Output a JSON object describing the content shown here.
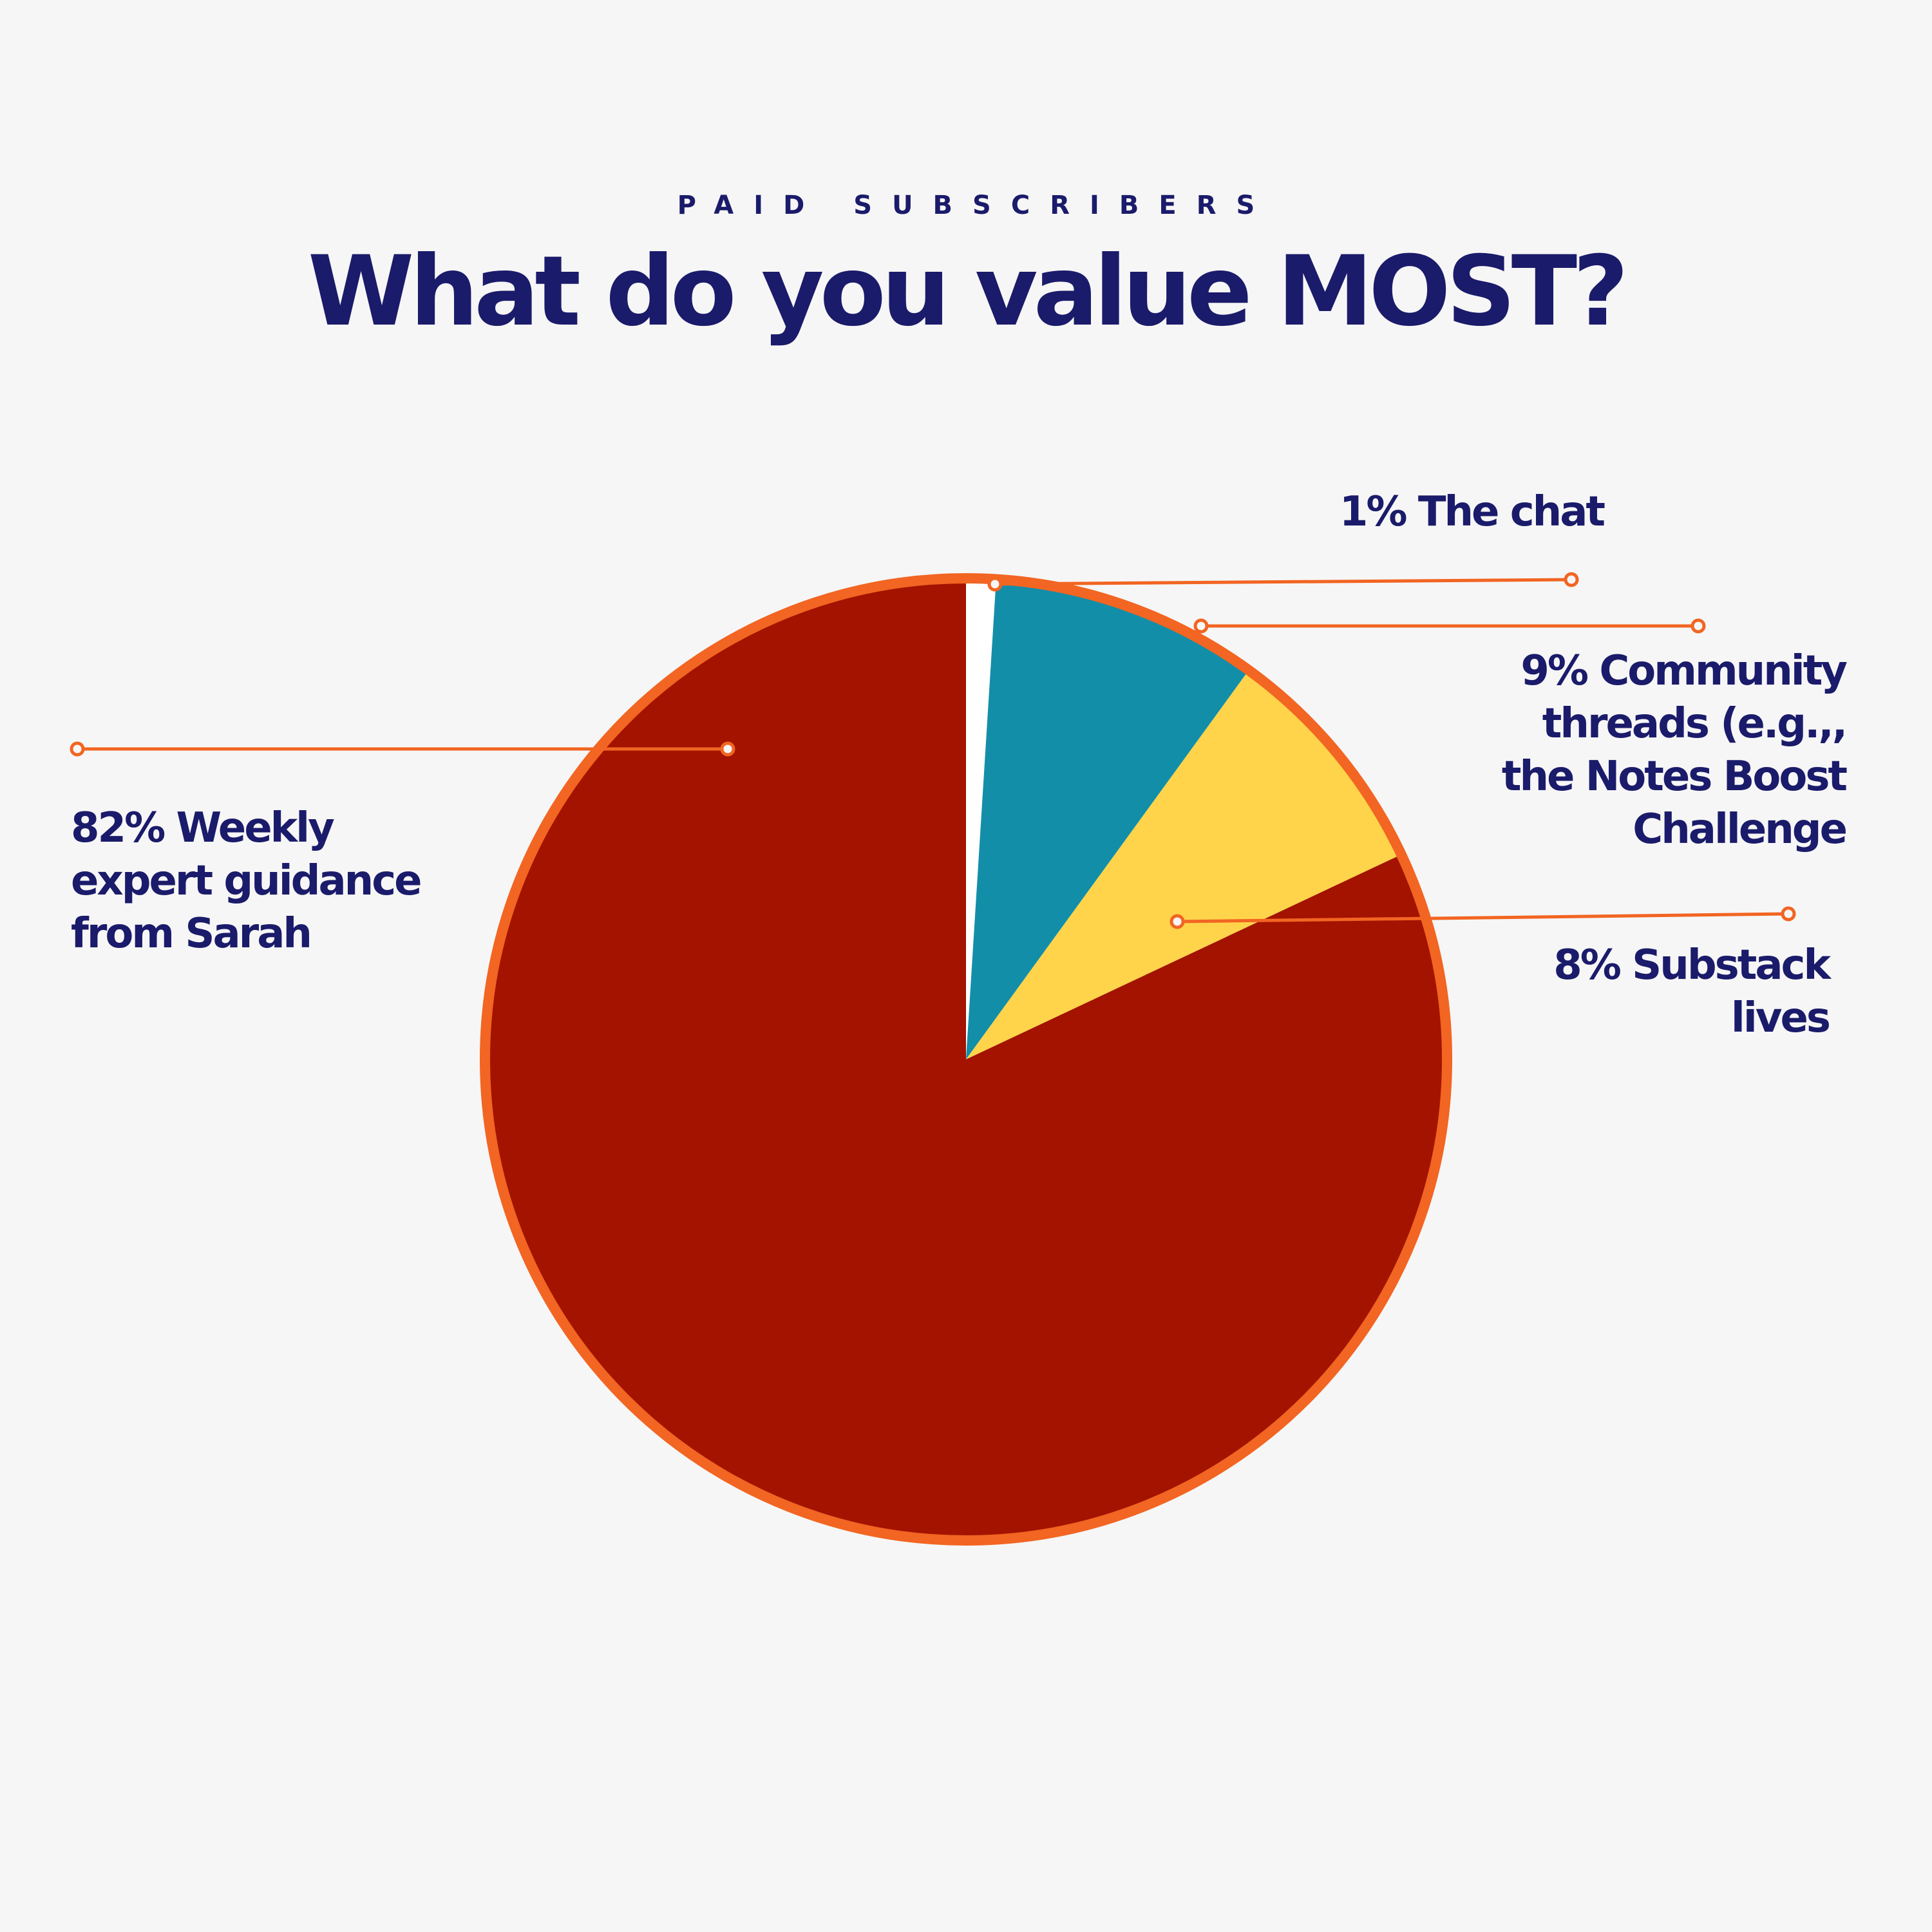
{
  "header": {
    "subtitle": "PAID SUBSCRIBERS",
    "title": "What do you value MOST?"
  },
  "colors": {
    "text": "#1b1b6b",
    "leader": "#f26522",
    "background": "#f6f6f6"
  },
  "chart_data": {
    "type": "pie",
    "title": "What do you value MOST?",
    "subtitle": "PAID SUBSCRIBERS",
    "slices": [
      {
        "label": "82% Weekly expert guidance from Sarah",
        "value": 82,
        "color": "#a31300"
      },
      {
        "label": "1% The chat",
        "value": 1,
        "color": "#ffffff"
      },
      {
        "label": "9% Community threads (e.g.,, the Notes Boost Challenge",
        "value": 9,
        "color": "#138ea8"
      },
      {
        "label": "8% Substack lives",
        "value": 8,
        "color": "#ffd44a"
      }
    ],
    "start_slice": "1% The chat",
    "direction": "clockwise",
    "outline_color": "#f26522"
  }
}
